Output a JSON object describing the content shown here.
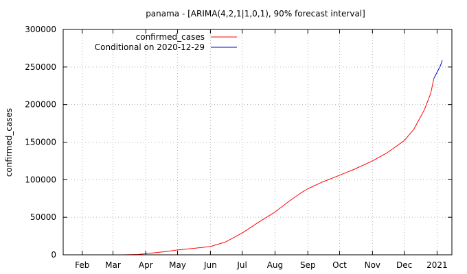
{
  "chart_data": {
    "type": "line",
    "title": "panama -  [ARIMA(4,2,1|1,0,1), 90% forecast interval]",
    "xlabel": "",
    "ylabel": "confirmed_cases",
    "x_tick_labels": [
      "Feb",
      "Mar",
      "Apr",
      "May",
      "Jun",
      "Jul",
      "Aug",
      "Sep",
      "Oct",
      "Nov",
      "Dec",
      "2021"
    ],
    "x_tick_dates": [
      "2020-02-01",
      "2020-03-01",
      "2020-04-01",
      "2020-05-01",
      "2020-06-01",
      "2020-07-01",
      "2020-08-01",
      "2020-09-01",
      "2020-10-01",
      "2020-11-01",
      "2020-12-01",
      "2021-01-01"
    ],
    "xlim": [
      "2020-01-14",
      "2021-01-15"
    ],
    "ylim": [
      0,
      300000
    ],
    "y_ticks": [
      0,
      50000,
      100000,
      150000,
      200000,
      250000,
      300000
    ],
    "y_tick_labels": [
      "0",
      "50000",
      "100000",
      "150000",
      "200000",
      "250000",
      "300000"
    ],
    "grid": true,
    "legend_position": "top-left",
    "series": [
      {
        "name": "confirmed_cases",
        "color": "#ff0000",
        "points": [
          [
            "2020-03-10",
            0
          ],
          [
            "2020-03-25",
            500
          ],
          [
            "2020-04-01",
            1500
          ],
          [
            "2020-04-10",
            2800
          ],
          [
            "2020-04-20",
            4300
          ],
          [
            "2020-05-01",
            6500
          ],
          [
            "2020-05-15",
            8500
          ],
          [
            "2020-06-01",
            11000
          ],
          [
            "2020-06-15",
            17000
          ],
          [
            "2020-07-01",
            29000
          ],
          [
            "2020-07-15",
            42000
          ],
          [
            "2020-08-01",
            57000
          ],
          [
            "2020-08-15",
            72000
          ],
          [
            "2020-08-25",
            82000
          ],
          [
            "2020-09-01",
            88000
          ],
          [
            "2020-09-15",
            97000
          ],
          [
            "2020-10-01",
            106000
          ],
          [
            "2020-10-15",
            114000
          ],
          [
            "2020-11-01",
            125000
          ],
          [
            "2020-11-15",
            136000
          ],
          [
            "2020-12-01",
            152000
          ],
          [
            "2020-12-10",
            167000
          ],
          [
            "2020-12-20",
            193000
          ],
          [
            "2020-12-26",
            215000
          ],
          [
            "2020-12-29",
            235000
          ]
        ]
      },
      {
        "name": "Conditional on 2020-12-29",
        "color": "#0000cc",
        "points": [
          [
            "2020-12-29",
            235000
          ],
          [
            "2021-01-01",
            243000
          ],
          [
            "2021-01-04",
            251000
          ],
          [
            "2021-01-06",
            259000
          ]
        ]
      }
    ]
  }
}
